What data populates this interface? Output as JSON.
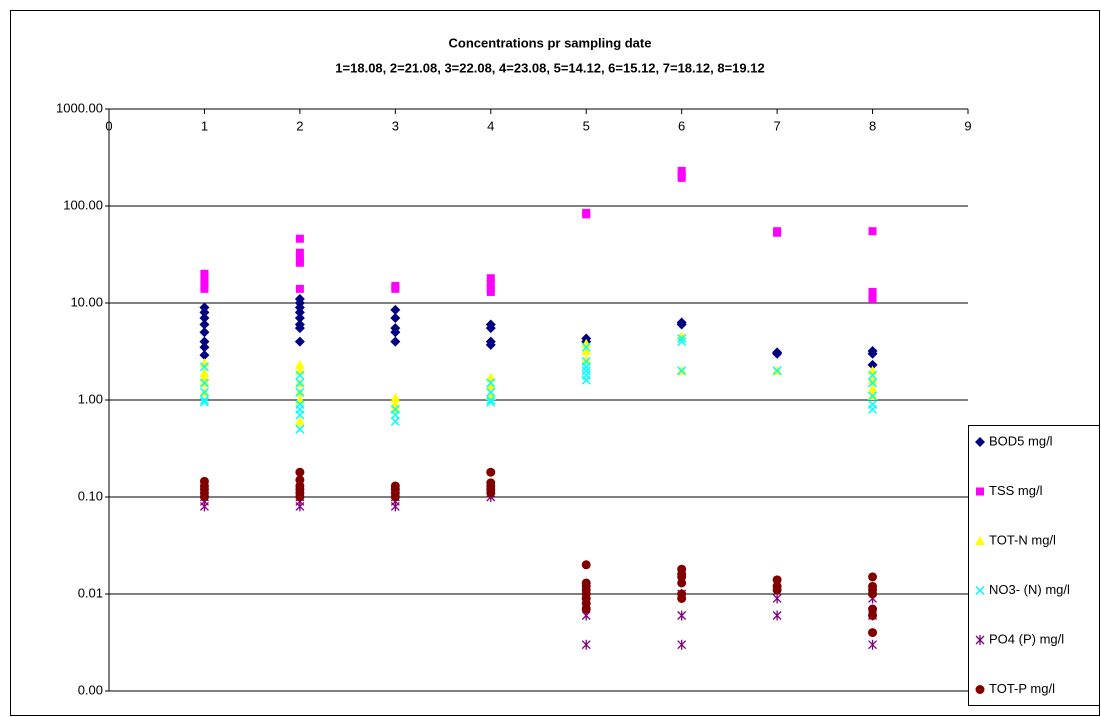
{
  "chart_data": {
    "type": "scatter",
    "title": "Concentrations pr sampling date",
    "subtitle": "1=18.08, 2=21.08, 3=22.08, 4=23.08, 5=14.12, 6=15.12, 7=18.12, 8=19.12",
    "log_y": true,
    "grid": true,
    "legend": "right",
    "xlim": [
      0,
      9
    ],
    "xticks": [
      0,
      1,
      2,
      3,
      4,
      5,
      6,
      7,
      8,
      9
    ],
    "ylim": [
      0.001,
      1000
    ],
    "yticks": [
      {
        "value": 1000,
        "label": "1000.00"
      },
      {
        "value": 100,
        "label": "100.00"
      },
      {
        "value": 10,
        "label": "10.00"
      },
      {
        "value": 1,
        "label": "1.00"
      },
      {
        "value": 0.1,
        "label": "0.10"
      },
      {
        "value": 0.01,
        "label": "0.01"
      },
      {
        "value": 0.001,
        "label": "0.00"
      }
    ],
    "series": [
      {
        "name": "BOD5 mg/l",
        "color": "#000080",
        "marker": "diamond",
        "x": [
          1,
          1,
          1,
          1,
          1,
          1,
          1,
          1,
          2,
          2,
          2,
          2,
          2,
          2,
          2,
          2,
          3,
          3,
          3,
          3,
          3,
          4,
          4,
          4,
          4,
          5,
          5,
          6,
          6,
          7,
          7,
          8,
          8,
          8
        ],
        "values": [
          9,
          8,
          7,
          6,
          5,
          4,
          3.5,
          2.9,
          11,
          10,
          9,
          8,
          7,
          6,
          5.5,
          4,
          8.5,
          7,
          5.5,
          5,
          4,
          6,
          5.5,
          4,
          3.7,
          4.3,
          4,
          6.3,
          6,
          3.1,
          3,
          3.2,
          3,
          2.3
        ]
      },
      {
        "name": "TSS mg/l",
        "color": "#ff00ff",
        "marker": "square",
        "x": [
          1,
          1,
          1,
          1,
          1,
          2,
          2,
          2,
          2,
          2,
          3,
          3,
          4,
          4,
          4,
          4,
          5,
          5,
          6,
          6,
          6,
          7,
          7,
          8,
          8,
          8,
          8
        ],
        "values": [
          20,
          18,
          16,
          15,
          14,
          46,
          33,
          28,
          26,
          14,
          15,
          14,
          18,
          16,
          14,
          13,
          85,
          82,
          230,
          210,
          195,
          55,
          53,
          55,
          13,
          12,
          11
        ]
      },
      {
        "name": "TOT-N mg/l",
        "color": "#ffff00",
        "marker": "triangle",
        "x": [
          1,
          1,
          1,
          1,
          1,
          2,
          2,
          2,
          2,
          2,
          2,
          3,
          3,
          3,
          4,
          4,
          4,
          5,
          5,
          5,
          6,
          6,
          7,
          8,
          8,
          8,
          8
        ],
        "values": [
          2.4,
          1.9,
          1.7,
          1.5,
          1.2,
          2.3,
          2,
          1.5,
          1.2,
          1,
          0.6,
          1.05,
          0.9,
          0.8,
          1.7,
          1.4,
          1.1,
          3.8,
          3.2,
          2.6,
          4.5,
          2,
          2,
          2,
          1.6,
          1.3,
          1.1
        ]
      },
      {
        "name": "NO3- (N) mg/l",
        "color": "#00ffff",
        "marker": "x",
        "x": [
          1,
          1,
          1,
          1,
          1,
          2,
          2,
          2,
          2,
          2,
          2,
          2,
          3,
          3,
          3,
          4,
          4,
          4,
          4,
          5,
          5,
          5,
          5,
          5,
          5,
          6,
          6,
          6,
          7,
          8,
          8,
          8,
          8,
          8
        ],
        "values": [
          2.2,
          1.5,
          1.2,
          1,
          0.95,
          1.8,
          1.5,
          1.2,
          0.9,
          0.8,
          0.7,
          0.5,
          0.8,
          0.7,
          0.6,
          1.5,
          1.2,
          1,
          0.95,
          3.5,
          2.5,
          2.2,
          2,
          1.8,
          1.6,
          4.3,
          4,
          2,
          2,
          1.8,
          1.5,
          1.1,
          0.9,
          0.8
        ]
      },
      {
        "name": "PO4 (P) mg/l",
        "color": "#800080",
        "marker": "asterisk",
        "x": [
          1,
          1,
          1,
          2,
          2,
          2,
          3,
          3,
          3,
          4,
          4,
          5,
          5,
          5,
          5,
          6,
          6,
          6,
          7,
          7,
          8,
          8,
          8
        ],
        "values": [
          0.1,
          0.09,
          0.08,
          0.1,
          0.09,
          0.08,
          0.1,
          0.09,
          0.08,
          0.11,
          0.1,
          0.01,
          0.008,
          0.006,
          0.003,
          0.01,
          0.006,
          0.003,
          0.009,
          0.006,
          0.009,
          0.006,
          0.003
        ]
      },
      {
        "name": "TOT-P mg/l",
        "color": "#800000",
        "marker": "circle",
        "x": [
          1,
          1,
          1,
          1,
          1,
          2,
          2,
          2,
          2,
          2,
          2,
          3,
          3,
          3,
          3,
          4,
          4,
          4,
          4,
          4,
          5,
          5,
          5,
          5,
          5,
          5,
          5,
          5,
          6,
          6,
          6,
          6,
          6,
          6,
          7,
          7,
          7,
          8,
          8,
          8,
          8,
          8,
          8,
          8
        ],
        "values": [
          0.145,
          0.13,
          0.12,
          0.11,
          0.1,
          0.18,
          0.15,
          0.13,
          0.12,
          0.11,
          0.1,
          0.13,
          0.12,
          0.11,
          0.1,
          0.18,
          0.14,
          0.13,
          0.12,
          0.11,
          0.02,
          0.013,
          0.012,
          0.011,
          0.01,
          0.009,
          0.008,
          0.007,
          0.018,
          0.016,
          0.015,
          0.013,
          0.01,
          0.009,
          0.014,
          0.012,
          0.011,
          0.015,
          0.012,
          0.011,
          0.01,
          0.007,
          0.006,
          0.004
        ]
      }
    ]
  }
}
